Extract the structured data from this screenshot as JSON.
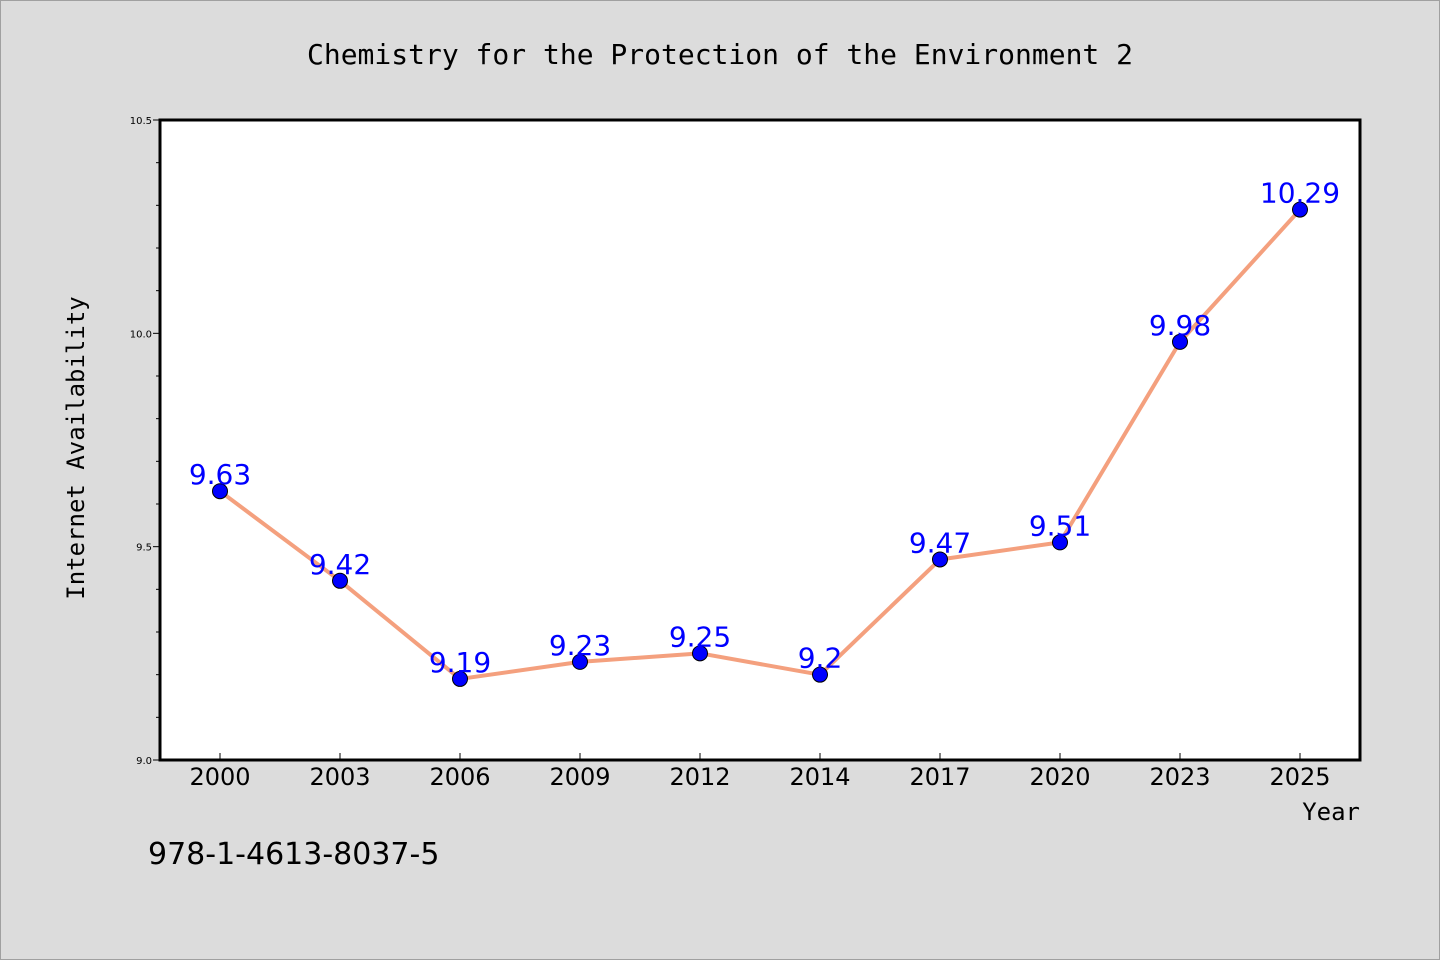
{
  "chart_data": {
    "type": "line",
    "title": "Chemistry for the Protection of the Environment 2",
    "xlabel": "Year",
    "ylabel": "Internet Availability",
    "categories": [
      "2000",
      "2003",
      "2006",
      "2009",
      "2012",
      "2014",
      "2017",
      "2020",
      "2023",
      "2025"
    ],
    "series": [
      {
        "values": [
          9.63,
          9.42,
          9.19,
          9.23,
          9.25,
          9.2,
          9.47,
          9.51,
          9.98,
          10.29
        ],
        "labels": [
          "9.63",
          "9.42",
          "9.19",
          "9.23",
          "9.25",
          "9.2",
          "9.47",
          "9.51",
          "9.98",
          "10.29"
        ]
      }
    ],
    "ylim": [
      9.0,
      10.5
    ],
    "yticks": [
      "9.0",
      "9.5",
      "10.0",
      "10.5"
    ],
    "grid": false,
    "line_color": "#f4a07e",
    "marker_color": "#0000ff",
    "label_color": "#0000ff"
  },
  "footer": {
    "isbn": "978-1-4613-8037-5"
  }
}
